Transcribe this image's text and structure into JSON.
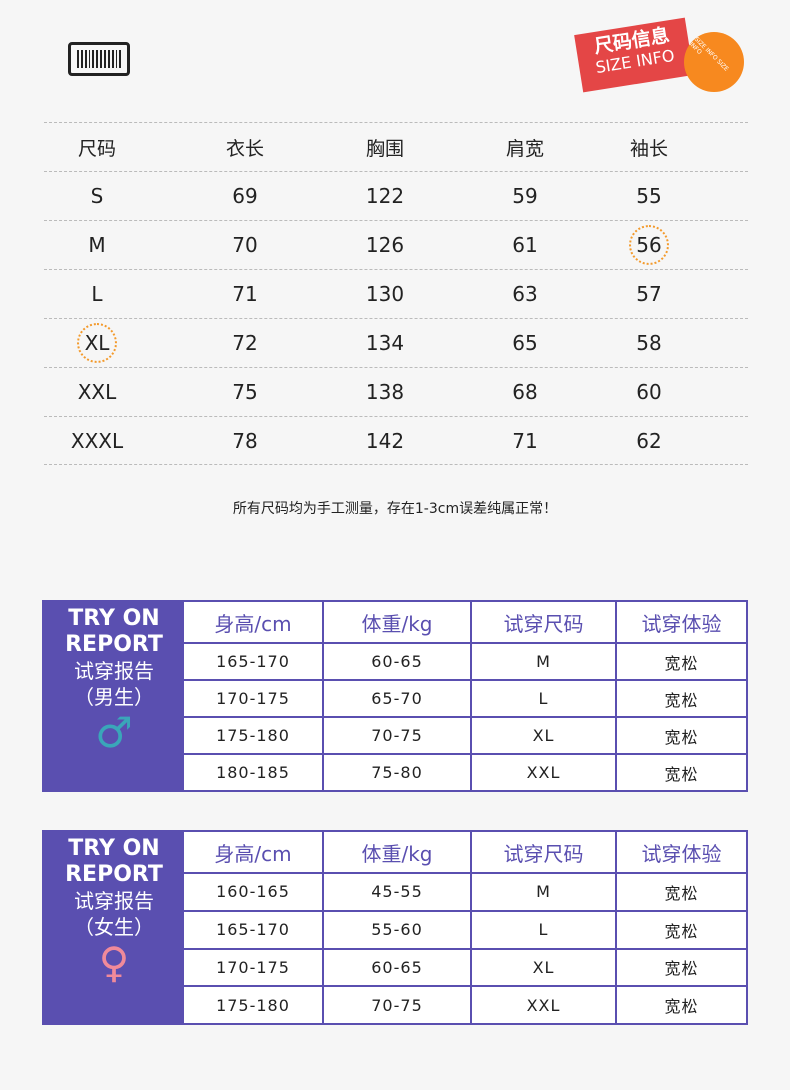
{
  "badge": {
    "cn": "尺码信息",
    "en": "SIZE INFO",
    "stamp": "SIZE INFO SIZE INFO"
  },
  "size_table": {
    "headers": [
      "尺码",
      "衣长",
      "胸围",
      "肩宽",
      "袖长"
    ],
    "rows": [
      [
        "S",
        "69",
        "122",
        "59",
        "55"
      ],
      [
        "M",
        "70",
        "126",
        "61",
        "56"
      ],
      [
        "L",
        "71",
        "130",
        "63",
        "57"
      ],
      [
        "XL",
        "72",
        "134",
        "65",
        "58"
      ],
      [
        "XXL",
        "75",
        "138",
        "68",
        "60"
      ],
      [
        "XXXL",
        "78",
        "142",
        "71",
        "62"
      ]
    ]
  },
  "note": "所有尺码均为手工测量，存在1-3cm误差纯属正常！",
  "colors": {
    "purple": "#5a4fb0",
    "male": "#3aa6b9",
    "female": "#f08a9a",
    "badge": "#e44646",
    "stamp": "#f7891f"
  },
  "male": {
    "title1": "TRY ON",
    "title2": "REPORT",
    "title3": "试穿报告",
    "title4": "（男生）",
    "icon": "male-symbol-icon",
    "headers": [
      "身高/cm",
      "体重/kg",
      "试穿尺码",
      "试穿体验"
    ],
    "rows": [
      [
        "165-170",
        "60-65",
        "M",
        "宽松"
      ],
      [
        "170-175",
        "65-70",
        "L",
        "宽松"
      ],
      [
        "175-180",
        "70-75",
        "XL",
        "宽松"
      ],
      [
        "180-185",
        "75-80",
        "XXL",
        "宽松"
      ]
    ]
  },
  "female": {
    "title1": "TRY ON",
    "title2": "REPORT",
    "title3": "试穿报告",
    "title4": "（女生）",
    "icon": "female-symbol-icon",
    "headers": [
      "身高/cm",
      "体重/kg",
      "试穿尺码",
      "试穿体验"
    ],
    "rows": [
      [
        "160-165",
        "45-55",
        "M",
        "宽松"
      ],
      [
        "165-170",
        "55-60",
        "L",
        "宽松"
      ],
      [
        "170-175",
        "60-65",
        "XL",
        "宽松"
      ],
      [
        "175-180",
        "70-75",
        "XXL",
        "宽松"
      ]
    ]
  }
}
